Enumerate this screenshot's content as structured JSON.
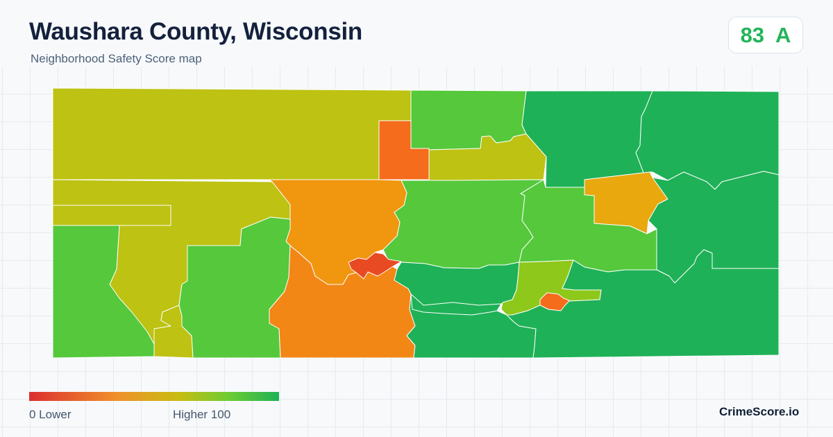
{
  "header": {
    "title": "Waushara County, Wisconsin",
    "subtitle": "Neighborhood Safety Score map"
  },
  "score": {
    "value": "83",
    "grade": "A",
    "color": "#22b559"
  },
  "legend": {
    "low_label": "0  Lower",
    "high_label": "Higher  100",
    "low_color": "#dc2f2f",
    "high_color": "#1fb157"
  },
  "brand": "CrimeScore.io",
  "colors": {
    "olive": "#bdc213",
    "yellow_green": "#8ec81a",
    "light_green": "#55c83c",
    "green": "#1fb157",
    "amber": "#e8a80e",
    "orange": "#f0960f",
    "dark_orange": "#f28716",
    "red_orange": "#f56c1c",
    "red": "#e84a24"
  }
}
